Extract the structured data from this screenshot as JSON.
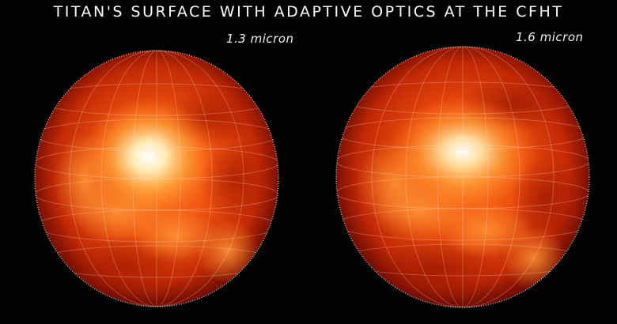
{
  "title": "TITAN'S SURFACE WITH ADAPTIVE OPTICS AT THE CFHT",
  "panels": [
    {
      "label": "1.3 micron"
    },
    {
      "label": "1.6 micron"
    }
  ],
  "colors": {
    "background": "#000000",
    "rim": "#7a0a00",
    "mid": "#e0400a",
    "bright": "#ffffff"
  }
}
